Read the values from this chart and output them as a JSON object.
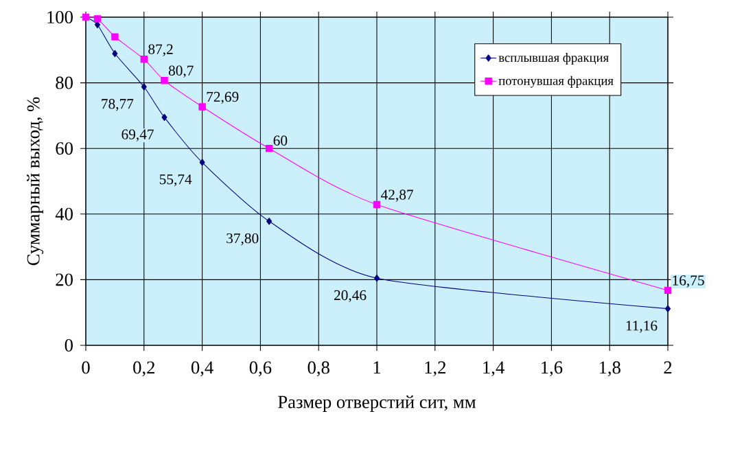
{
  "chart_data": {
    "type": "line",
    "xlabel": "Размер отверстий сит, мм",
    "ylabel": "Суммарный выход, %",
    "x": [
      0,
      0.04,
      0.1,
      0.2,
      0.27,
      0.4,
      0.63,
      1,
      2
    ],
    "series": [
      {
        "name": "всплывшая фракция",
        "color": "#000080",
        "marker": "diamond",
        "values": [
          100,
          97.7,
          88.9,
          78.77,
          69.47,
          55.74,
          37.8,
          20.46,
          11.16
        ],
        "value_labels": [
          null,
          null,
          null,
          "78,77",
          "69,47",
          "55,74",
          "37,80",
          "20,46",
          "11,16"
        ]
      },
      {
        "name": "потонувшая фракция",
        "color": "#ff00ff",
        "marker": "square",
        "values": [
          100,
          99.5,
          94,
          87.2,
          80.7,
          72.69,
          60,
          42.87,
          16.75
        ],
        "value_labels": [
          null,
          null,
          null,
          "87,2",
          "80,7",
          "72,69",
          "60",
          "42,87",
          "16,75"
        ]
      }
    ],
    "xlim": [
      0,
      2
    ],
    "ylim": [
      0,
      100
    ],
    "xticks": [
      0,
      {
        "value": 0.2,
        "label": "0,2"
      },
      {
        "value": 0.4,
        "label": "0,4"
      },
      {
        "value": 0.6,
        "label": "0,6"
      },
      {
        "value": 0.8,
        "label": "0,8"
      },
      1,
      {
        "value": 1.2,
        "label": "1,2"
      },
      {
        "value": 1.4,
        "label": "1,4"
      },
      {
        "value": 1.6,
        "label": "1,6"
      },
      {
        "value": 1.8,
        "label": "1,8"
      },
      2
    ],
    "yticks": [
      0,
      20,
      40,
      60,
      80,
      100
    ],
    "grid": true,
    "legend": "top right",
    "line_style": "solid"
  }
}
